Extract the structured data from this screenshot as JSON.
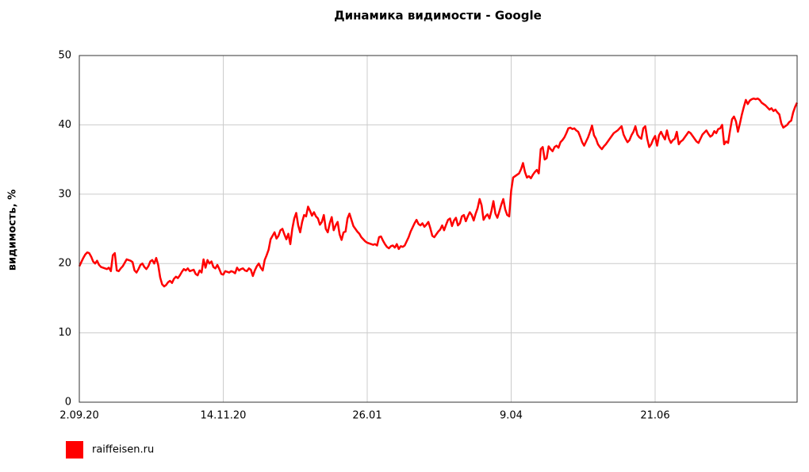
{
  "chart_data": {
    "type": "line",
    "title": "Динамика видимости - Google",
    "y_label": "видимость, %",
    "categories": [
      "2.09.20",
      null,
      null,
      null,
      null,
      null,
      null,
      null,
      null,
      null,
      null,
      null,
      null,
      null,
      null,
      null,
      null,
      null,
      null,
      null,
      null,
      null,
      null,
      null,
      null,
      null,
      null,
      null,
      null,
      null,
      null,
      null,
      null,
      null,
      null,
      null,
      null,
      null,
      null,
      null,
      null,
      null,
      null,
      null,
      null,
      null,
      null,
      null,
      null,
      null,
      null,
      null,
      null,
      null,
      null,
      null,
      null,
      null,
      null,
      null,
      null,
      null,
      null,
      null,
      null,
      null,
      null,
      null,
      null,
      null,
      null,
      null,
      null,
      "14.11.20",
      null,
      null,
      null,
      null,
      null,
      null,
      null,
      null,
      null,
      null,
      null,
      null,
      null,
      null,
      null,
      null,
      null,
      null,
      null,
      null,
      null,
      null,
      null,
      null,
      null,
      null,
      null,
      null,
      null,
      null,
      null,
      null,
      null,
      null,
      null,
      null,
      null,
      null,
      null,
      null,
      null,
      null,
      null,
      null,
      null,
      null,
      null,
      null,
      null,
      null,
      null,
      null,
      null,
      null,
      null,
      null,
      null,
      null,
      null,
      null,
      null,
      null,
      null,
      null,
      null,
      null,
      null,
      null,
      null,
      null,
      null,
      null,
      "26.01",
      null,
      null,
      null,
      null,
      null,
      null,
      null,
      null,
      null,
      null,
      null,
      null,
      null,
      null,
      null,
      null,
      null,
      null,
      null,
      null,
      null,
      null,
      null,
      null,
      null,
      null,
      null,
      null,
      null,
      null,
      null,
      null,
      null,
      null,
      null,
      null,
      null,
      null,
      null,
      null,
      null,
      null,
      null,
      null,
      null,
      null,
      null,
      null,
      null,
      null,
      null,
      null,
      null,
      null,
      null,
      null,
      null,
      null,
      null,
      null,
      null,
      null,
      null,
      null,
      null,
      null,
      null,
      null,
      null,
      null,
      null,
      null,
      "9.04",
      null,
      null,
      null,
      null,
      null,
      null,
      null,
      null,
      null,
      null,
      null,
      null,
      null,
      null,
      null,
      null,
      null,
      null,
      null,
      null,
      null,
      null,
      null,
      null,
      null,
      null,
      null,
      null,
      null,
      null,
      null,
      null,
      null,
      null,
      null,
      null,
      null,
      null,
      null,
      null,
      null,
      null,
      null,
      null,
      null,
      null,
      null,
      null,
      null,
      null,
      null,
      null,
      null,
      null,
      null,
      null,
      null,
      null,
      null,
      null,
      null,
      null,
      null,
      null,
      null,
      null,
      null,
      null,
      null,
      null,
      null,
      null,
      "21.06",
      null,
      null,
      null,
      null,
      null,
      null,
      null,
      null,
      null,
      null,
      null,
      null,
      null,
      null,
      null,
      null,
      null,
      null,
      null,
      null,
      null,
      null,
      null,
      null,
      null,
      null,
      null,
      null,
      null,
      null,
      null,
      null,
      null,
      null,
      null,
      null,
      null,
      null,
      null,
      null,
      null,
      null,
      null,
      null,
      null,
      null,
      null,
      null,
      null,
      null,
      null,
      null,
      null,
      null,
      null,
      null,
      null,
      null,
      null,
      null,
      null,
      null,
      null,
      null,
      null,
      null,
      null,
      null,
      null,
      null,
      null,
      null
    ],
    "series": [
      {
        "name": "raiffeisen.ru",
        "color": "#ff0000",
        "values": [
          19.6,
          20.2,
          20.8,
          21.3,
          21.6,
          21.5,
          21.0,
          20.3,
          20.0,
          20.4,
          19.8,
          19.5,
          19.4,
          19.3,
          19.2,
          19.4,
          18.9,
          21.2,
          21.5,
          19.0,
          18.9,
          19.3,
          19.6,
          20.1,
          20.6,
          20.5,
          20.4,
          20.2,
          19.0,
          18.7,
          19.2,
          19.8,
          20.0,
          19.5,
          19.2,
          19.6,
          20.3,
          20.5,
          20.0,
          20.8,
          19.8,
          18.0,
          17.0,
          16.7,
          16.9,
          17.3,
          17.5,
          17.2,
          17.8,
          18.1,
          17.9,
          18.3,
          18.8,
          19.2,
          19.0,
          19.3,
          18.9,
          19.0,
          19.1,
          18.5,
          18.3,
          19.0,
          18.7,
          20.6,
          19.4,
          20.5,
          20.0,
          20.3,
          19.5,
          19.3,
          19.8,
          19.2,
          18.5,
          18.4,
          18.9,
          18.8,
          18.7,
          18.9,
          18.8,
          18.6,
          19.4,
          19.0,
          19.2,
          19.3,
          19.0,
          18.9,
          19.3,
          19.1,
          18.2,
          19.0,
          19.6,
          20.0,
          19.4,
          19.0,
          20.5,
          21.2,
          22.0,
          23.5,
          24.0,
          24.5,
          23.6,
          24.0,
          24.8,
          25.0,
          24.2,
          23.5,
          24.3,
          22.8,
          25.0,
          26.5,
          27.3,
          25.5,
          24.5,
          26.0,
          27.0,
          26.8,
          28.2,
          27.6,
          26.9,
          27.4,
          26.8,
          26.5,
          25.6,
          26.0,
          27.0,
          25.0,
          24.5,
          25.8,
          26.7,
          24.8,
          25.5,
          26.0,
          24.2,
          23.4,
          24.5,
          24.6,
          26.5,
          27.2,
          26.3,
          25.4,
          25.0,
          24.6,
          24.3,
          23.8,
          23.5,
          23.2,
          23.0,
          22.9,
          22.8,
          22.7,
          22.8,
          22.6,
          23.8,
          23.9,
          23.3,
          22.8,
          22.4,
          22.2,
          22.5,
          22.6,
          22.3,
          22.8,
          22.1,
          22.5,
          22.4,
          22.6,
          23.2,
          23.8,
          24.6,
          25.2,
          25.8,
          26.3,
          25.7,
          25.5,
          25.8,
          25.3,
          25.6,
          26.0,
          25.1,
          24.0,
          23.8,
          24.2,
          24.6,
          24.9,
          25.5,
          24.8,
          25.6,
          26.3,
          26.5,
          25.4,
          26.2,
          26.6,
          25.5,
          25.8,
          26.8,
          27.0,
          26.1,
          26.8,
          27.4,
          27.0,
          26.2,
          27.2,
          28.0,
          29.3,
          28.4,
          26.3,
          26.8,
          27.1,
          26.5,
          27.6,
          29.0,
          27.2,
          26.6,
          27.5,
          28.5,
          29.3,
          27.8,
          27.0,
          26.8,
          30.5,
          32.4,
          32.6,
          32.8,
          33.0,
          33.6,
          34.5,
          33.2,
          32.4,
          32.6,
          32.3,
          32.8,
          33.2,
          33.5,
          33.0,
          36.5,
          36.8,
          35.0,
          35.2,
          36.9,
          36.5,
          36.2,
          36.8,
          37.0,
          36.7,
          37.5,
          37.8,
          38.2,
          38.8,
          39.5,
          39.6,
          39.4,
          39.5,
          39.2,
          39.0,
          38.3,
          37.5,
          37.0,
          37.6,
          38.2,
          39.0,
          39.9,
          38.5,
          38.0,
          37.2,
          36.8,
          36.5,
          36.9,
          37.2,
          37.6,
          38.0,
          38.4,
          38.8,
          39.0,
          39.2,
          39.5,
          39.8,
          38.6,
          38.0,
          37.5,
          37.8,
          38.5,
          39.0,
          39.8,
          38.6,
          38.2,
          38.0,
          39.5,
          39.8,
          38.0,
          36.8,
          37.2,
          37.9,
          38.4,
          37.0,
          38.5,
          39.0,
          38.4,
          37.9,
          39.2,
          38.0,
          37.4,
          37.8,
          38.0,
          39.0,
          37.2,
          37.6,
          37.8,
          38.2,
          38.6,
          39.0,
          38.8,
          38.4,
          38.0,
          37.6,
          37.4,
          38.0,
          38.6,
          38.9,
          39.2,
          38.7,
          38.3,
          38.5,
          39.1,
          38.8,
          39.4,
          39.5,
          40.0,
          37.2,
          37.6,
          37.4,
          39.2,
          40.8,
          41.2,
          40.5,
          39.0,
          40.2,
          41.5,
          42.6,
          43.6,
          43.0,
          43.5,
          43.7,
          43.8,
          43.7,
          43.8,
          43.6,
          43.2,
          43.0,
          42.8,
          42.5,
          42.2,
          42.4,
          42.0,
          42.2,
          41.8,
          41.5,
          40.2,
          39.6,
          39.8,
          40.0,
          40.4,
          40.6,
          41.8,
          42.6,
          43.2
        ]
      }
    ],
    "ylim": [
      0,
      50
    ],
    "yticks": [
      0,
      10,
      20,
      30,
      40,
      50
    ],
    "grid": true,
    "legend": "bottom-left"
  }
}
